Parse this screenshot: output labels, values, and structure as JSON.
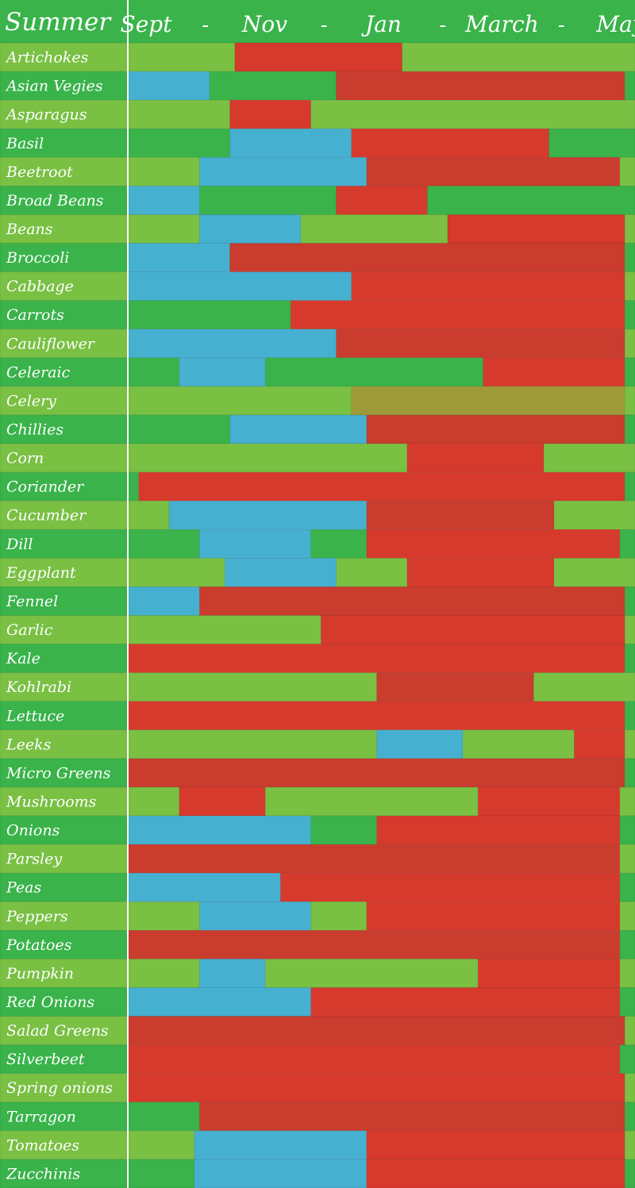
{
  "chart_data": {
    "type": "table",
    "title": "Summer",
    "header_months": [
      "Sept",
      "-",
      "Nov",
      "-",
      "Jan",
      "-",
      "March",
      "-",
      "May"
    ],
    "colors": {
      "plant": "#46b0d0",
      "grow": "#79c043",
      "grow_alt": "#39b34a",
      "harvest": "#d63a2c",
      "harvest_alt": "#c93c2e",
      "celery_band": "#9e9a3a",
      "divider": "#ffffff"
    },
    "legend": [],
    "rows": [
      {
        "name": "Artichokes",
        "segments": [
          [
            0,
            0.21,
            "grow"
          ],
          [
            0.21,
            0.54,
            "harvest"
          ],
          [
            0.54,
            1.0,
            "grow"
          ]
        ]
      },
      {
        "name": "Asian Vegies",
        "segments": [
          [
            0,
            0.16,
            "plant"
          ],
          [
            0.16,
            0.41,
            "grow"
          ],
          [
            0.41,
            0.98,
            "harvest"
          ],
          [
            0.98,
            1.0,
            "grow"
          ]
        ]
      },
      {
        "name": "Asparagus",
        "segments": [
          [
            0,
            0.2,
            "grow"
          ],
          [
            0.2,
            0.36,
            "harvest"
          ],
          [
            0.36,
            1.0,
            "grow"
          ]
        ]
      },
      {
        "name": "Basil",
        "segments": [
          [
            0,
            0.2,
            "grow"
          ],
          [
            0.2,
            0.44,
            "plant"
          ],
          [
            0.44,
            0.83,
            "harvest"
          ],
          [
            0.83,
            1.0,
            "grow"
          ]
        ]
      },
      {
        "name": "Beetroot",
        "segments": [
          [
            0,
            0.14,
            "grow"
          ],
          [
            0.14,
            0.47,
            "plant"
          ],
          [
            0.47,
            0.97,
            "harvest"
          ],
          [
            0.97,
            1.0,
            "grow"
          ]
        ]
      },
      {
        "name": "Broad Beans",
        "segments": [
          [
            0,
            0.14,
            "plant"
          ],
          [
            0.14,
            0.41,
            "grow"
          ],
          [
            0.41,
            0.59,
            "harvest"
          ],
          [
            0.59,
            1.0,
            "grow"
          ]
        ]
      },
      {
        "name": "Beans",
        "segments": [
          [
            0,
            0.14,
            "grow"
          ],
          [
            0.14,
            0.34,
            "plant"
          ],
          [
            0.34,
            0.63,
            "grow"
          ],
          [
            0.63,
            0.98,
            "harvest"
          ],
          [
            0.98,
            1.0,
            "grow"
          ]
        ]
      },
      {
        "name": "Broccoli",
        "segments": [
          [
            0,
            0.2,
            "plant"
          ],
          [
            0.2,
            0.98,
            "harvest"
          ],
          [
            0.98,
            1.0,
            "grow"
          ]
        ]
      },
      {
        "name": "Cabbage",
        "segments": [
          [
            0,
            0.44,
            "plant"
          ],
          [
            0.44,
            0.98,
            "harvest"
          ],
          [
            0.98,
            1.0,
            "grow"
          ]
        ]
      },
      {
        "name": "Carrots",
        "segments": [
          [
            0,
            0.32,
            "grow"
          ],
          [
            0.32,
            0.98,
            "harvest"
          ],
          [
            0.98,
            1.0,
            "grow"
          ]
        ]
      },
      {
        "name": "Cauliflower",
        "segments": [
          [
            0,
            0.41,
            "plant"
          ],
          [
            0.41,
            0.98,
            "harvest"
          ],
          [
            0.98,
            1.0,
            "grow"
          ]
        ]
      },
      {
        "name": "Celeraic",
        "segments": [
          [
            0,
            0.1,
            "grow"
          ],
          [
            0.1,
            0.27,
            "plant"
          ],
          [
            0.27,
            0.7,
            "grow"
          ],
          [
            0.7,
            0.98,
            "harvest"
          ],
          [
            0.98,
            1.0,
            "grow"
          ]
        ]
      },
      {
        "name": "Celery",
        "dim": true,
        "segments": [
          [
            0,
            0.44,
            "grow"
          ],
          [
            0.44,
            0.98,
            "celery_band"
          ],
          [
            0.98,
            1.0,
            "grow"
          ]
        ]
      },
      {
        "name": "Chillies",
        "segments": [
          [
            0,
            0.2,
            "grow"
          ],
          [
            0.2,
            0.47,
            "plant"
          ],
          [
            0.47,
            0.98,
            "harvest"
          ],
          [
            0.98,
            1.0,
            "grow"
          ]
        ]
      },
      {
        "name": "Corn",
        "segments": [
          [
            0,
            0.55,
            "grow"
          ],
          [
            0.55,
            0.82,
            "harvest"
          ],
          [
            0.82,
            1.0,
            "grow"
          ]
        ]
      },
      {
        "name": "Coriander",
        "segments": [
          [
            0,
            0.02,
            "grow"
          ],
          [
            0.02,
            0.98,
            "harvest"
          ],
          [
            0.98,
            1.0,
            "grow"
          ]
        ]
      },
      {
        "name": "Cucumber",
        "segments": [
          [
            0,
            0.08,
            "grow"
          ],
          [
            0.08,
            0.47,
            "plant"
          ],
          [
            0.47,
            0.84,
            "harvest"
          ],
          [
            0.84,
            1.0,
            "grow"
          ]
        ]
      },
      {
        "name": "Dill",
        "segments": [
          [
            0,
            0.14,
            "grow"
          ],
          [
            0.14,
            0.36,
            "plant"
          ],
          [
            0.36,
            0.47,
            "grow"
          ],
          [
            0.47,
            0.97,
            "harvest"
          ],
          [
            0.97,
            1.0,
            "grow"
          ]
        ]
      },
      {
        "name": "Eggplant",
        "segments": [
          [
            0,
            0.19,
            "grow"
          ],
          [
            0.19,
            0.41,
            "plant"
          ],
          [
            0.41,
            0.55,
            "grow"
          ],
          [
            0.55,
            0.84,
            "harvest"
          ],
          [
            0.84,
            1.0,
            "grow"
          ]
        ]
      },
      {
        "name": "Fennel",
        "segments": [
          [
            0,
            0.14,
            "plant"
          ],
          [
            0.14,
            0.98,
            "harvest"
          ],
          [
            0.98,
            1.0,
            "grow"
          ]
        ]
      },
      {
        "name": "Garlic",
        "segments": [
          [
            0,
            0.38,
            "grow"
          ],
          [
            0.38,
            0.98,
            "harvest"
          ],
          [
            0.98,
            1.0,
            "grow"
          ]
        ]
      },
      {
        "name": "Kale",
        "segments": [
          [
            0,
            0.98,
            "harvest"
          ],
          [
            0.98,
            1.0,
            "grow"
          ]
        ]
      },
      {
        "name": "Kohlrabi",
        "segments": [
          [
            0,
            0.49,
            "grow"
          ],
          [
            0.49,
            0.8,
            "harvest"
          ],
          [
            0.8,
            1.0,
            "grow"
          ]
        ]
      },
      {
        "name": "Lettuce",
        "segments": [
          [
            0,
            0.98,
            "harvest"
          ],
          [
            0.98,
            1.0,
            "grow"
          ]
        ]
      },
      {
        "name": "Leeks",
        "segments": [
          [
            0,
            0.49,
            "grow"
          ],
          [
            0.49,
            0.66,
            "plant"
          ],
          [
            0.66,
            0.88,
            "grow"
          ],
          [
            0.88,
            0.98,
            "harvest"
          ],
          [
            0.98,
            1.0,
            "grow"
          ]
        ]
      },
      {
        "name": "Micro Greens",
        "segments": [
          [
            0,
            0.98,
            "harvest"
          ],
          [
            0.98,
            1.0,
            "grow"
          ]
        ]
      },
      {
        "name": "Mushrooms",
        "segments": [
          [
            0,
            0.1,
            "grow"
          ],
          [
            0.1,
            0.27,
            "harvest"
          ],
          [
            0.27,
            0.69,
            "grow"
          ],
          [
            0.69,
            0.97,
            "harvest"
          ],
          [
            0.97,
            1.0,
            "grow"
          ]
        ]
      },
      {
        "name": "Onions",
        "segments": [
          [
            0,
            0.36,
            "plant"
          ],
          [
            0.36,
            0.49,
            "grow"
          ],
          [
            0.49,
            0.97,
            "harvest"
          ],
          [
            0.97,
            1.0,
            "grow"
          ]
        ]
      },
      {
        "name": "Parsley",
        "segments": [
          [
            0,
            0.97,
            "harvest"
          ],
          [
            0.97,
            1.0,
            "grow"
          ]
        ]
      },
      {
        "name": "Peas",
        "segments": [
          [
            0,
            0.3,
            "plant"
          ],
          [
            0.3,
            0.97,
            "harvest"
          ],
          [
            0.97,
            1.0,
            "grow"
          ]
        ]
      },
      {
        "name": "Peppers",
        "segments": [
          [
            0,
            0.14,
            "grow"
          ],
          [
            0.14,
            0.36,
            "plant"
          ],
          [
            0.36,
            0.47,
            "grow"
          ],
          [
            0.47,
            0.97,
            "harvest"
          ],
          [
            0.97,
            1.0,
            "grow"
          ]
        ]
      },
      {
        "name": "Potatoes",
        "segments": [
          [
            0,
            0.97,
            "harvest"
          ],
          [
            0.97,
            1.0,
            "grow"
          ]
        ]
      },
      {
        "name": "Pumpkin",
        "segments": [
          [
            0,
            0.14,
            "grow"
          ],
          [
            0.14,
            0.27,
            "plant"
          ],
          [
            0.27,
            0.69,
            "grow"
          ],
          [
            0.69,
            0.97,
            "harvest"
          ],
          [
            0.97,
            1.0,
            "grow"
          ]
        ]
      },
      {
        "name": "Red Onions",
        "segments": [
          [
            0,
            0.36,
            "plant"
          ],
          [
            0.36,
            0.97,
            "harvest"
          ],
          [
            0.97,
            1.0,
            "grow"
          ]
        ]
      },
      {
        "name": "Salad Greens",
        "segments": [
          [
            0,
            0.98,
            "harvest"
          ],
          [
            0.98,
            1.0,
            "grow"
          ]
        ]
      },
      {
        "name": "Silverbeet",
        "segments": [
          [
            0,
            0.97,
            "harvest"
          ],
          [
            0.97,
            1.0,
            "grow"
          ]
        ]
      },
      {
        "name": "Spring onions",
        "segments": [
          [
            0,
            0.98,
            "harvest"
          ],
          [
            0.98,
            1.0,
            "grow"
          ]
        ]
      },
      {
        "name": "Tarragon",
        "segments": [
          [
            0,
            0.14,
            "grow"
          ],
          [
            0.14,
            0.98,
            "harvest"
          ],
          [
            0.98,
            1.0,
            "grow"
          ]
        ]
      },
      {
        "name": "Tomatoes",
        "segments": [
          [
            0,
            0.13,
            "grow"
          ],
          [
            0.13,
            0.47,
            "plant"
          ],
          [
            0.47,
            0.98,
            "harvest"
          ],
          [
            0.98,
            1.0,
            "grow"
          ]
        ]
      },
      {
        "name": "Zucchinis",
        "segments": [
          [
            0,
            0.13,
            "grow"
          ],
          [
            0.13,
            0.47,
            "plant"
          ],
          [
            0.47,
            0.98,
            "harvest"
          ],
          [
            0.98,
            1.0,
            "grow"
          ]
        ]
      }
    ]
  }
}
